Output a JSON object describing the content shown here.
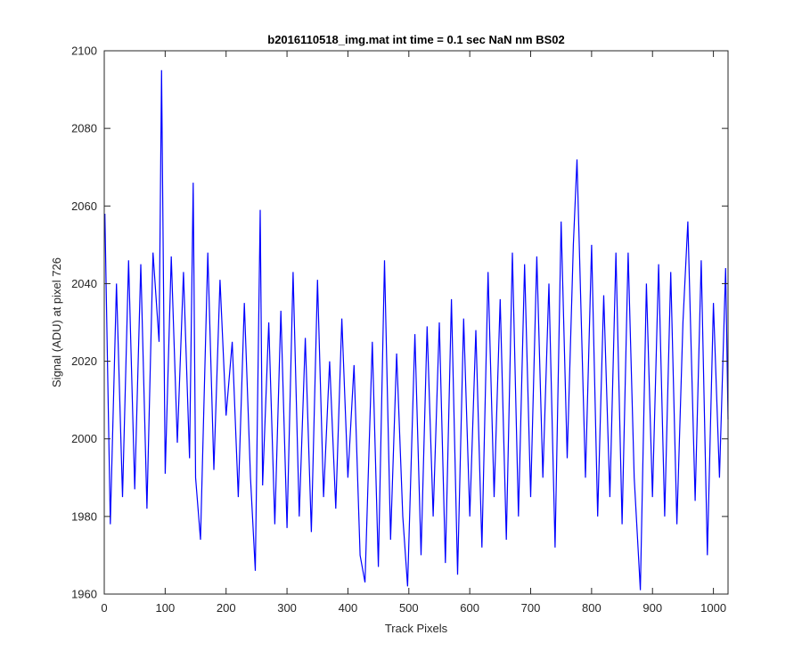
{
  "chart_data": {
    "type": "line",
    "title": "b2016110518_img.mat int time = 0.1 sec  NaN nm BS02",
    "xlabel": "Track Pixels",
    "ylabel": "Signal (ADU) at pixel 726",
    "xlim": [
      0,
      1024
    ],
    "ylim": [
      1960,
      2100
    ],
    "xticks": [
      0,
      100,
      200,
      300,
      400,
      500,
      600,
      700,
      800,
      900,
      1000
    ],
    "yticks": [
      1960,
      1980,
      2000,
      2020,
      2040,
      2060,
      2080,
      2100
    ],
    "grid": false,
    "series": [
      {
        "color": "#0000ff",
        "x": [
          1,
          10,
          20,
          30,
          40,
          50,
          60,
          70,
          80,
          90,
          94,
          100,
          110,
          120,
          130,
          140,
          146,
          150,
          158,
          170,
          180,
          190,
          200,
          210,
          220,
          230,
          240,
          248,
          256,
          260,
          270,
          280,
          290,
          300,
          310,
          320,
          330,
          340,
          350,
          360,
          370,
          380,
          390,
          400,
          410,
          420,
          428,
          440,
          450,
          460,
          470,
          480,
          490,
          498,
          510,
          520,
          530,
          540,
          550,
          560,
          570,
          580,
          590,
          600,
          610,
          620,
          630,
          640,
          650,
          660,
          670,
          680,
          690,
          700,
          710,
          720,
          730,
          740,
          750,
          760,
          770,
          776,
          790,
          800,
          810,
          820,
          830,
          840,
          850,
          860,
          870,
          880,
          890,
          900,
          910,
          920,
          930,
          940,
          950,
          958,
          970,
          980,
          990,
          1000,
          1010,
          1020,
          1024
        ],
        "y": [
          2058,
          1978,
          2040,
          1985,
          2046,
          1987,
          2045,
          1982,
          2048,
          2025,
          2095,
          1991,
          2047,
          1999,
          2043,
          1995,
          2066,
          1990,
          1974,
          2048,
          1992,
          2041,
          2006,
          2025,
          1985,
          2035,
          1990,
          1966,
          2059,
          1988,
          2030,
          1978,
          2033,
          1977,
          2043,
          1980,
          2026,
          1976,
          2041,
          1985,
          2020,
          1982,
          2031,
          1990,
          2019,
          1970,
          1963,
          2025,
          1967,
          2046,
          1974,
          2022,
          1980,
          1962,
          2027,
          1970,
          2029,
          1980,
          2030,
          1968,
          2036,
          1965,
          2031,
          1980,
          2028,
          1972,
          2043,
          1985,
          2036,
          1974,
          2048,
          1980,
          2045,
          1985,
          2047,
          1990,
          2040,
          1972,
          2056,
          1995,
          2050,
          2072,
          1990,
          2050,
          1980,
          2037,
          1985,
          2048,
          1978,
          2048,
          1990,
          1961,
          2040,
          1985,
          2045,
          1980,
          2043,
          1978,
          2030,
          2056,
          1984,
          2046,
          1970,
          2035,
          1990,
          2044,
          2005
        ]
      }
    ]
  }
}
